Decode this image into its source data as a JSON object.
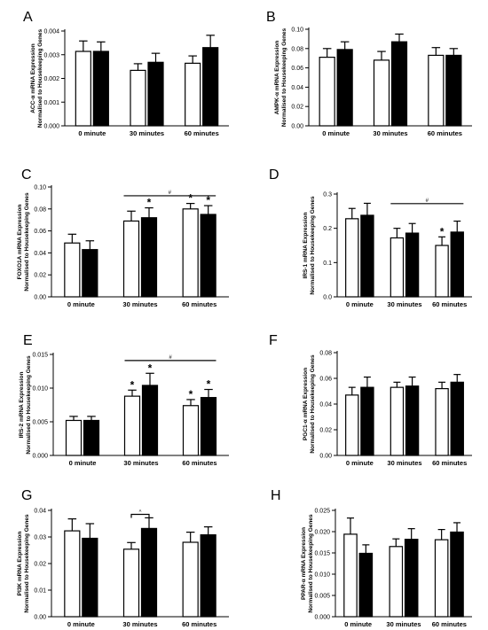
{
  "chart_data": [
    {
      "panel": "A",
      "type": "bar",
      "ylabel": [
        "ACC-α mRNA Expression",
        "Normalised to Housekeeping Genes"
      ],
      "categories": [
        "0 minute",
        "30 minutes",
        "60 minutes"
      ],
      "ylim": [
        0,
        0.004
      ],
      "yticks": [
        0.0,
        0.001,
        0.002,
        0.003,
        0.004
      ],
      "ytick_labels": [
        "0.000",
        "0.001",
        "0.002",
        "0.003",
        "0.004"
      ],
      "series": [
        {
          "fill": "#ffffff",
          "values": [
            0.00314,
            0.00234,
            0.00264
          ],
          "errors": [
            0.00044,
            0.00028,
            0.00031
          ]
        },
        {
          "fill": "#000000",
          "values": [
            0.00314,
            0.00268,
            0.0033
          ],
          "errors": [
            0.0004,
            0.00038,
            0.00052
          ]
        }
      ],
      "stars": [],
      "hash_lines": [],
      "brackets": []
    },
    {
      "panel": "B",
      "type": "bar",
      "ylabel": [
        "AMPK-α mRNA Expression",
        "Normalised to Housekeeping Genes"
      ],
      "categories": [
        "0 minute",
        "30 minutes",
        "60 minutes"
      ],
      "ylim": [
        0,
        0.1
      ],
      "yticks": [
        0,
        0.02,
        0.04,
        0.06,
        0.08,
        0.1
      ],
      "ytick_labels": [
        "0.00",
        "0.02",
        "0.04",
        "0.06",
        "0.08",
        "0.10"
      ],
      "series": [
        {
          "fill": "#ffffff",
          "values": [
            0.071,
            0.068,
            0.073
          ],
          "errors": [
            0.009,
            0.009,
            0.008
          ]
        },
        {
          "fill": "#000000",
          "values": [
            0.079,
            0.087,
            0.073
          ],
          "errors": [
            0.008,
            0.008,
            0.007
          ]
        }
      ],
      "stars": [],
      "hash_lines": [],
      "brackets": []
    },
    {
      "panel": "C",
      "type": "bar",
      "ylabel": [
        "FOXO1A mRNA Expression",
        "Normalised to Housekeeping Genes"
      ],
      "categories": [
        "0 minute",
        "30 minutes",
        "60 minutes"
      ],
      "ylim": [
        0,
        0.1
      ],
      "yticks": [
        0,
        0.02,
        0.04,
        0.06,
        0.08,
        0.1
      ],
      "ytick_labels": [
        "0.00",
        "0.02",
        "0.04",
        "0.06",
        "0.08",
        "0.10"
      ],
      "series": [
        {
          "fill": "#ffffff",
          "values": [
            0.049,
            0.069,
            0.08
          ],
          "errors": [
            0.008,
            0.009,
            0.005
          ]
        },
        {
          "fill": "#000000",
          "values": [
            0.043,
            0.072,
            0.075
          ],
          "errors": [
            0.008,
            0.009,
            0.008
          ]
        }
      ],
      "stars": [
        {
          "category": 1,
          "series": 1,
          "text": "*"
        },
        {
          "category": 2,
          "series": 0,
          "text": "*"
        },
        {
          "category": 2,
          "series": 1,
          "text": "*"
        }
      ],
      "hash_lines": [
        {
          "from": 1,
          "to": 2,
          "y": 0.092,
          "text": "#"
        }
      ],
      "brackets": []
    },
    {
      "panel": "D",
      "type": "bar",
      "ylabel": [
        "IRS-1 mRNA Expression",
        "Normalised to Housekeeping Genes"
      ],
      "categories": [
        "0 minute",
        "30 minutes",
        "60 minutes"
      ],
      "ylim": [
        0,
        0.3
      ],
      "yticks": [
        0,
        0.1,
        0.2,
        0.3
      ],
      "ytick_labels": [
        "0.0",
        "0.1",
        "0.2",
        "0.3"
      ],
      "series": [
        {
          "fill": "#ffffff",
          "values": [
            0.228,
            0.172,
            0.15
          ],
          "errors": [
            0.03,
            0.028,
            0.025
          ]
        },
        {
          "fill": "#000000",
          "values": [
            0.238,
            0.186,
            0.189
          ],
          "errors": [
            0.035,
            0.028,
            0.032
          ]
        }
      ],
      "stars": [
        {
          "category": 2,
          "series": 0,
          "text": "*"
        }
      ],
      "hash_lines": [
        {
          "from": 1,
          "to": 2,
          "y": 0.272,
          "text": "#"
        }
      ],
      "brackets": []
    },
    {
      "panel": "E",
      "type": "bar",
      "ylabel": [
        "IRS-2 mRNA Expression",
        "Normalised to Housekeeping Genes"
      ],
      "categories": [
        "0 minute",
        "30 minutes",
        "60 minutes"
      ],
      "ylim": [
        0,
        0.015
      ],
      "yticks": [
        0,
        0.005,
        0.01,
        0.015
      ],
      "ytick_labels": [
        "0.000",
        "0.005",
        "0.010",
        "0.015"
      ],
      "series": [
        {
          "fill": "#ffffff",
          "values": [
            0.0052,
            0.0088,
            0.0074
          ],
          "errors": [
            0.0006,
            0.0009,
            0.0009
          ]
        },
        {
          "fill": "#000000",
          "values": [
            0.0052,
            0.0104,
            0.0086
          ],
          "errors": [
            0.0006,
            0.0018,
            0.0012
          ]
        }
      ],
      "stars": [
        {
          "category": 1,
          "series": 0,
          "text": "*"
        },
        {
          "category": 1,
          "series": 1,
          "text": "*"
        },
        {
          "category": 2,
          "series": 0,
          "text": "*"
        },
        {
          "category": 2,
          "series": 1,
          "text": "*"
        }
      ],
      "hash_lines": [
        {
          "from": 1,
          "to": 2,
          "y": 0.0141,
          "text": "#"
        }
      ],
      "brackets": []
    },
    {
      "panel": "F",
      "type": "bar",
      "ylabel": [
        "PGC1-α mRNA Expression",
        "Normalised to Housekeeping Genes"
      ],
      "categories": [
        "0 minute",
        "30 minutes",
        "60 minutes"
      ],
      "ylim": [
        0,
        0.08
      ],
      "yticks": [
        0,
        0.02,
        0.04,
        0.06,
        0.08
      ],
      "ytick_labels": [
        "0.00",
        "0.02",
        "0.04",
        "0.06",
        "0.08"
      ],
      "series": [
        {
          "fill": "#ffffff",
          "values": [
            0.047,
            0.053,
            0.052
          ],
          "errors": [
            0.006,
            0.004,
            0.005
          ]
        },
        {
          "fill": "#000000",
          "values": [
            0.053,
            0.054,
            0.057
          ],
          "errors": [
            0.008,
            0.007,
            0.006
          ]
        }
      ],
      "stars": [],
      "hash_lines": [],
      "brackets": []
    },
    {
      "panel": "G",
      "type": "bar",
      "ylabel": [
        "PI3K mRNA Expression",
        "Normalised to Housekeeping Genes"
      ],
      "categories": [
        "0 minute",
        "30 minutes",
        "60 minutes"
      ],
      "ylim": [
        0,
        0.04
      ],
      "yticks": [
        0,
        0.01,
        0.02,
        0.03,
        0.04
      ],
      "ytick_labels": [
        "0.00",
        "0.01",
        "0.02",
        "0.03",
        "0.04"
      ],
      "series": [
        {
          "fill": "#ffffff",
          "values": [
            0.0323,
            0.0254,
            0.028
          ],
          "errors": [
            0.0045,
            0.0025,
            0.0038
          ]
        },
        {
          "fill": "#000000",
          "values": [
            0.0295,
            0.0332,
            0.0308
          ],
          "errors": [
            0.0055,
            0.004,
            0.003
          ]
        }
      ],
      "stars": [],
      "hash_lines": [],
      "brackets": [
        {
          "category": 1,
          "y": 0.0385,
          "text": "^"
        }
      ]
    },
    {
      "panel": "H",
      "type": "bar",
      "ylabel": [
        "PPAR-α mRNA Expression",
        "Normalised to Housekeeping Genes"
      ],
      "categories": [
        "0 minute",
        "30 minutes",
        "60 minutes"
      ],
      "ylim": [
        0,
        0.025
      ],
      "yticks": [
        0,
        0.005,
        0.01,
        0.015,
        0.02,
        0.025
      ],
      "ytick_labels": [
        "0.000",
        "0.005",
        "0.010",
        "0.015",
        "0.020",
        "0.025"
      ],
      "series": [
        {
          "fill": "#ffffff",
          "values": [
            0.0194,
            0.0165,
            0.0181
          ],
          "errors": [
            0.0038,
            0.0018,
            0.0024
          ]
        },
        {
          "fill": "#000000",
          "values": [
            0.0149,
            0.0182,
            0.0199
          ],
          "errors": [
            0.002,
            0.0025,
            0.0022
          ]
        }
      ],
      "stars": [],
      "hash_lines": [],
      "brackets": []
    }
  ]
}
